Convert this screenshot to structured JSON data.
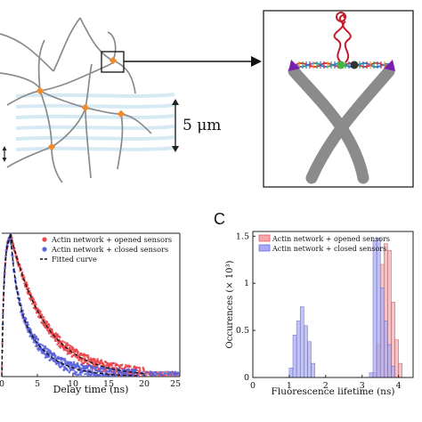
{
  "panel_top": {
    "scale_label": "5 μm"
  },
  "panel_c": {
    "letter": "C"
  },
  "colors": {
    "opened": "#e8474b",
    "closed": "#5a62d9",
    "opened_fill": "#f4a7ad",
    "closed_fill": "#a9abf2",
    "fiber": "#8a8a8a",
    "node": "#f08a2c",
    "purple": "#7a1fb0"
  },
  "chart_data": [
    {
      "type": "scatter",
      "xlabel": "Delay time (ns)",
      "ylabel": "",
      "xlim": [
        0,
        25
      ],
      "xticks": [
        0,
        5,
        10,
        15,
        20,
        25
      ],
      "ylim": [
        0,
        1
      ],
      "grid": false,
      "legend_position": "top-right",
      "series": [
        {
          "name": "Actin network + opened sensors",
          "style": "points",
          "color": "#e8474b",
          "decay_ns": 4.9,
          "end_ns": 20
        },
        {
          "name": "Actin network + closed sensors",
          "style": "points",
          "color": "#5a62d9",
          "decay_ns": [
            0.8,
            3.8
          ],
          "end_ns": 19
        },
        {
          "name": "Fitted curve",
          "style": "dashed",
          "color": "#111111"
        }
      ]
    },
    {
      "type": "bar",
      "title": "",
      "xlabel": "Fluorescence lifetime (ns)",
      "ylabel": "Occurences (× 10³)",
      "xlim": [
        0,
        4.4
      ],
      "xticks": [
        0,
        1,
        2,
        3,
        4
      ],
      "ylim": [
        0,
        1.55
      ],
      "yticks": [
        0,
        0.5,
        1,
        1.5
      ],
      "ytick_labels": [
        "0",
        "0.5",
        "1",
        "1.5"
      ],
      "bin_width": 0.1,
      "legend_position": "top-right",
      "series": [
        {
          "name": "Actin network + opened sensors",
          "color": "#f4a7ad",
          "bins": [
            3.3,
            3.4,
            3.5,
            3.6,
            3.7,
            3.8,
            3.9,
            4.0
          ],
          "values": [
            0.05,
            0.35,
            1.2,
            1.42,
            1.35,
            0.8,
            0.4,
            0.15
          ]
        },
        {
          "name": "Actin network + closed sensors",
          "color": "#a9abf2",
          "bins": [
            1.0,
            1.1,
            1.2,
            1.3,
            1.4,
            1.5,
            1.6,
            3.2,
            3.3,
            3.4,
            3.5,
            3.6,
            3.7,
            3.8
          ],
          "values": [
            0.1,
            0.45,
            0.6,
            0.75,
            0.55,
            0.38,
            0.15,
            0.05,
            1.45,
            1.48,
            0.95,
            0.6,
            0.35,
            0.12
          ]
        }
      ]
    }
  ]
}
